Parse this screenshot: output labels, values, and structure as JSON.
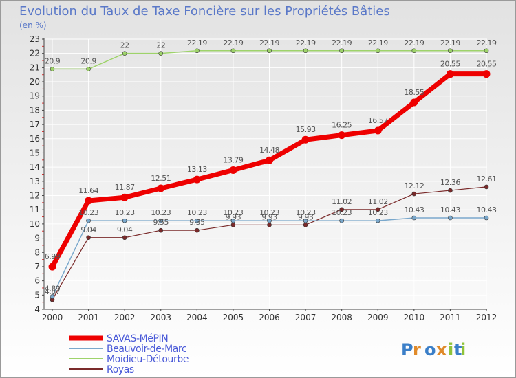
{
  "chart_data": {
    "type": "line",
    "title": "Evolution du Taux de Taxe Foncière sur les Propriétés Bâties",
    "subtitle": "(en %)",
    "xlabel": "",
    "ylabel": "",
    "x": [
      "2000",
      "2001",
      "2002",
      "2003",
      "2004",
      "2005",
      "2006",
      "2007",
      "2008",
      "2009",
      "2010",
      "2011",
      "2012"
    ],
    "ylim": [
      4,
      23
    ],
    "yticks": [
      4,
      5,
      6,
      7,
      8,
      9,
      10,
      11,
      12,
      13,
      14,
      15,
      16,
      17,
      18,
      19,
      20,
      21,
      22,
      23
    ],
    "grid": true,
    "legend_position": "bottom-left",
    "series": [
      {
        "name": "Royas",
        "color": "#7a2a2a",
        "width": 1.2,
        "values": [
          4.67,
          9.04,
          9.04,
          9.55,
          9.55,
          9.93,
          9.93,
          9.93,
          11.02,
          11.02,
          12.12,
          12.36,
          12.61
        ],
        "labels": [
          "4.67",
          "9.04",
          "9.04",
          "9.55",
          "9.55",
          "9.93",
          "9.93",
          "9.93",
          "11.02",
          "11.02",
          "12.12",
          "12.36",
          "12.61"
        ]
      },
      {
        "name": "Moidieu-Détourbe",
        "color": "#9ed36a",
        "width": 1.5,
        "values": [
          20.9,
          20.9,
          22,
          22,
          22.19,
          22.19,
          22.19,
          22.19,
          22.19,
          22.19,
          22.19,
          22.19,
          22.19
        ],
        "labels": [
          "20.9",
          "20.9",
          "22",
          "22",
          "22.19",
          "22.19",
          "22.19",
          "22.19",
          "22.19",
          "22.19",
          "22.19",
          "22.19",
          "22.19"
        ]
      },
      {
        "name": "Beauvoir-de-Marc",
        "color": "#7aa8cc",
        "width": 1.5,
        "values": [
          4.89,
          10.23,
          10.23,
          10.23,
          10.23,
          10.23,
          10.23,
          10.23,
          10.23,
          10.23,
          10.43,
          10.43,
          10.43
        ],
        "labels": [
          "4.89",
          "10.23",
          "10.23",
          "10.23",
          "10.23",
          "10.23",
          "10.23",
          "10.23",
          "10.23",
          "10.23",
          "10.43",
          "10.43",
          "10.43"
        ]
      },
      {
        "name": "SAVAS-MéPIN",
        "color": "#ee0000",
        "width": 7,
        "values": [
          6.99,
          11.64,
          11.87,
          12.51,
          13.13,
          13.79,
          14.48,
          15.93,
          16.25,
          16.57,
          18.55,
          20.55,
          20.55
        ],
        "labels": [
          "6.99",
          "11.64",
          "11.87",
          "12.51",
          "13.13",
          "13.79",
          "14.48",
          "15.93",
          "16.25",
          "16.57",
          "18.55",
          "20.55",
          "20.55"
        ]
      }
    ],
    "legend": [
      "SAVAS-MéPIN",
      "Beauvoir-de-Marc",
      "Moidieu-Détourbe",
      "Royas"
    ]
  },
  "brand": {
    "text": "Proxiti"
  },
  "colors": {
    "title": "#5a78c8",
    "legend_text": "#4a5ad8",
    "grid": "#ffffff"
  }
}
